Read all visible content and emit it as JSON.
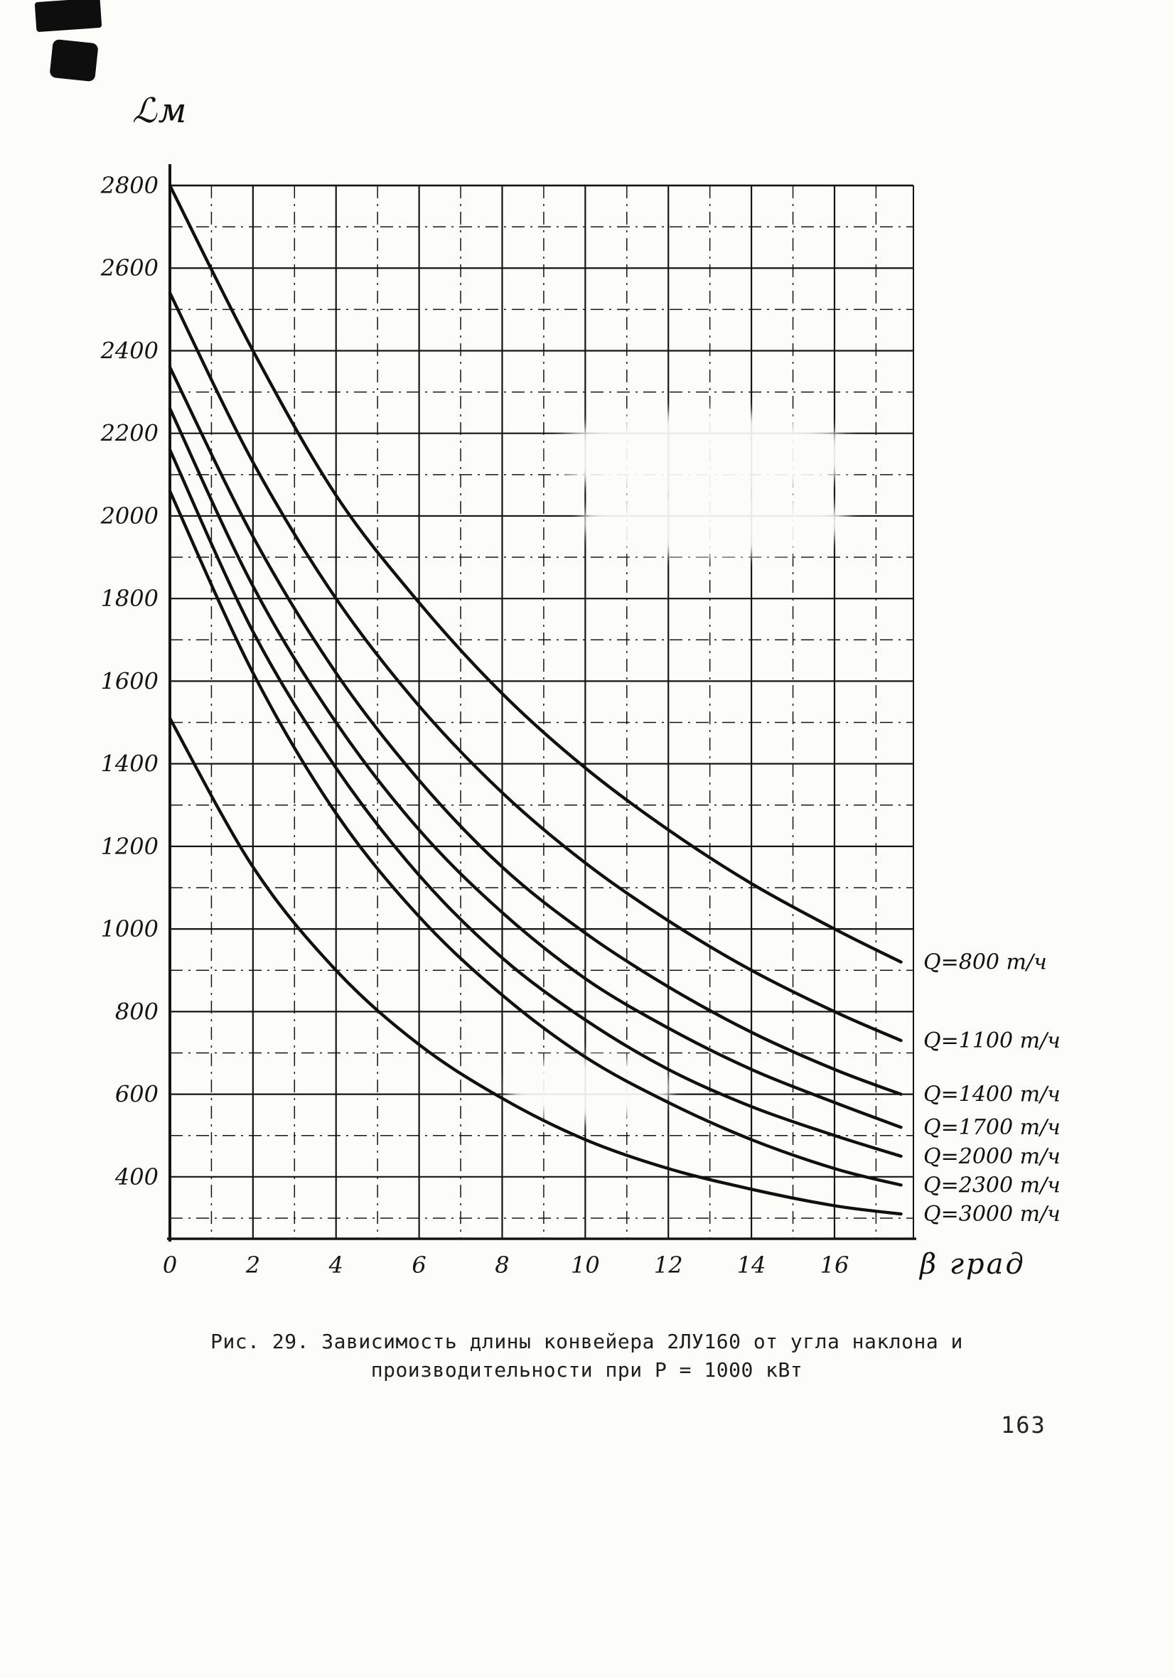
{
  "page": {
    "background": "#fcfcf9",
    "ink": "#141414",
    "page_number": "163"
  },
  "caption": {
    "line1": "Рис. 29. Зависимость длины конвейера 2ЛУ160 от угла наклона и",
    "line2": "производительности при Р = 1000 кВт"
  },
  "chart_data": {
    "type": "line",
    "title": "Зависимость длины конвейера 2ЛУ160 от угла наклона и производительности при Р = 1000 кВт",
    "xlabel": "β град",
    "ylabel": "ℒм",
    "x_ticks": [
      0,
      2,
      4,
      6,
      8,
      10,
      12,
      14,
      16
    ],
    "y_ticks": [
      400,
      600,
      800,
      1000,
      1200,
      1400,
      1600,
      1800,
      2000,
      2200,
      2400,
      2600,
      2800
    ],
    "xlim": [
      0,
      17.9
    ],
    "ylim": [
      250,
      2800
    ],
    "grid": "on",
    "grid_step_x": 1,
    "grid_step_y": 100,
    "legend_position": "labels-at-curve-ends",
    "line_color": "#101010",
    "x": [
      0,
      2,
      4,
      6,
      8,
      10,
      12,
      14,
      16,
      17.6
    ],
    "series": [
      {
        "name": "Q=800 т/ч",
        "values": [
          2800,
          2400,
          2050,
          1790,
          1570,
          1390,
          1240,
          1110,
          1000,
          920
        ]
      },
      {
        "name": "Q=1100 т/ч",
        "values": [
          2540,
          2130,
          1800,
          1540,
          1330,
          1160,
          1020,
          900,
          800,
          730
        ]
      },
      {
        "name": "Q=1400 т/ч",
        "values": [
          2360,
          1950,
          1620,
          1360,
          1150,
          990,
          860,
          750,
          660,
          600
        ]
      },
      {
        "name": "Q=1700 т/ч",
        "values": [
          2260,
          1830,
          1500,
          1240,
          1040,
          880,
          760,
          660,
          580,
          520
        ]
      },
      {
        "name": "Q=2000 т/ч",
        "values": [
          2160,
          1720,
          1390,
          1130,
          930,
          780,
          660,
          570,
          500,
          450
        ]
      },
      {
        "name": "Q=2300 т/ч",
        "values": [
          2060,
          1620,
          1280,
          1030,
          840,
          690,
          580,
          490,
          420,
          380
        ]
      },
      {
        "name": "Q=3000 т/ч",
        "values": [
          1510,
          1150,
          900,
          720,
          590,
          490,
          420,
          370,
          330,
          310
        ]
      }
    ]
  }
}
